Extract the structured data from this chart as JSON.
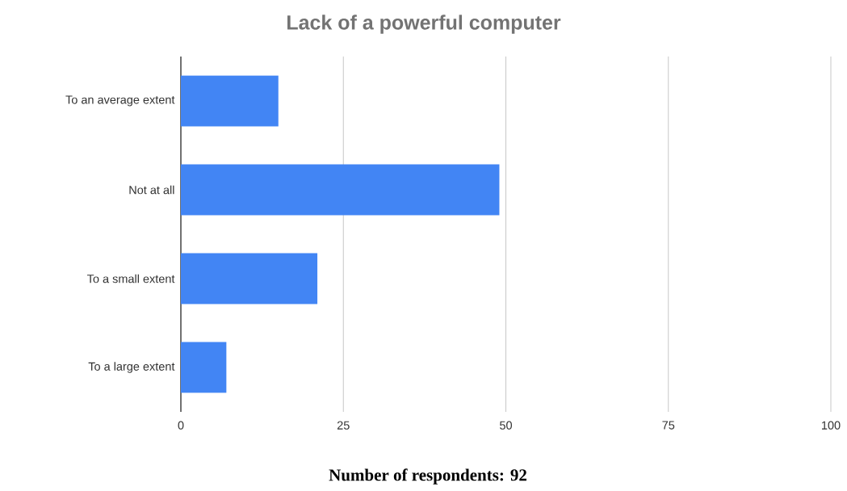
{
  "chart_data": {
    "type": "bar",
    "orientation": "horizontal",
    "title": "Lack of a powerful computer",
    "categories": [
      "To an average extent",
      "Not at all",
      "To a small extent",
      "To a large extent"
    ],
    "values": [
      15,
      49,
      21,
      7
    ],
    "color": "#4285f4",
    "xlim": [
      0,
      100
    ],
    "xticks": [
      0,
      25,
      50,
      75,
      100
    ],
    "grid": "x",
    "annotations": [
      "Number of respondents: 92"
    ]
  }
}
